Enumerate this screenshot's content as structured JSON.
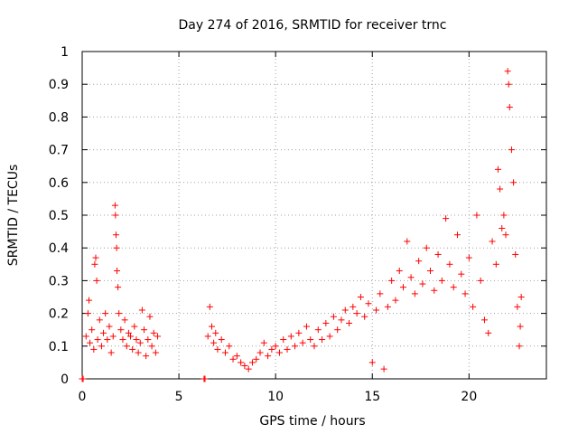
{
  "chart_data": {
    "type": "scatter",
    "title": "Day 274 of 2016, SRMTID for receiver trnc",
    "xlabel": "GPS time / hours",
    "ylabel": "SRMTID / TECUs",
    "xlim": [
      0,
      24
    ],
    "ylim": [
      0,
      1
    ],
    "xticks": [
      0,
      5,
      10,
      15,
      20
    ],
    "xtick_labels": [
      "0",
      "5",
      "10",
      "15",
      "20"
    ],
    "yticks": [
      0,
      0.1,
      0.2,
      0.3,
      0.4,
      0.5,
      0.6,
      0.7,
      0.8,
      0.9,
      1
    ],
    "ytick_labels": [
      "0",
      "0.1",
      "0.2",
      "0.3",
      "0.4",
      "0.5",
      "0.6",
      "0.7",
      "0.8",
      "0.9",
      "1"
    ],
    "grid": true,
    "marker": "plus",
    "color": "#ff0000",
    "series": [
      {
        "name": "SRMTID",
        "points": [
          [
            0.0,
            0.0
          ],
          [
            0.05,
            0.0
          ],
          [
            0.2,
            0.13
          ],
          [
            0.3,
            0.2
          ],
          [
            0.35,
            0.24
          ],
          [
            0.4,
            0.11
          ],
          [
            0.5,
            0.15
          ],
          [
            0.6,
            0.09
          ],
          [
            0.65,
            0.35
          ],
          [
            0.7,
            0.37
          ],
          [
            0.75,
            0.3
          ],
          [
            0.8,
            0.12
          ],
          [
            0.9,
            0.18
          ],
          [
            1.0,
            0.1
          ],
          [
            1.1,
            0.14
          ],
          [
            1.2,
            0.2
          ],
          [
            1.3,
            0.12
          ],
          [
            1.4,
            0.16
          ],
          [
            1.5,
            0.08
          ],
          [
            1.6,
            0.13
          ],
          [
            1.7,
            0.53
          ],
          [
            1.72,
            0.5
          ],
          [
            1.75,
            0.44
          ],
          [
            1.78,
            0.4
          ],
          [
            1.8,
            0.33
          ],
          [
            1.85,
            0.28
          ],
          [
            1.9,
            0.2
          ],
          [
            2.0,
            0.15
          ],
          [
            2.1,
            0.12
          ],
          [
            2.2,
            0.18
          ],
          [
            2.3,
            0.1
          ],
          [
            2.4,
            0.14
          ],
          [
            2.5,
            0.13
          ],
          [
            2.6,
            0.09
          ],
          [
            2.7,
            0.16
          ],
          [
            2.8,
            0.12
          ],
          [
            2.9,
            0.08
          ],
          [
            3.0,
            0.11
          ],
          [
            3.1,
            0.21
          ],
          [
            3.2,
            0.15
          ],
          [
            3.3,
            0.07
          ],
          [
            3.4,
            0.12
          ],
          [
            3.5,
            0.19
          ],
          [
            3.6,
            0.1
          ],
          [
            3.7,
            0.14
          ],
          [
            3.8,
            0.08
          ],
          [
            3.9,
            0.13
          ],
          [
            6.3,
            0.0
          ],
          [
            6.35,
            0.0
          ],
          [
            6.5,
            0.13
          ],
          [
            6.6,
            0.22
          ],
          [
            6.7,
            0.16
          ],
          [
            6.8,
            0.11
          ],
          [
            6.9,
            0.14
          ],
          [
            7.0,
            0.09
          ],
          [
            7.2,
            0.12
          ],
          [
            7.4,
            0.08
          ],
          [
            7.6,
            0.1
          ],
          [
            7.8,
            0.06
          ],
          [
            8.0,
            0.07
          ],
          [
            8.2,
            0.05
          ],
          [
            8.4,
            0.04
          ],
          [
            8.6,
            0.03
          ],
          [
            8.8,
            0.05
          ],
          [
            9.0,
            0.06
          ],
          [
            9.2,
            0.08
          ],
          [
            9.4,
            0.11
          ],
          [
            9.6,
            0.07
          ],
          [
            9.8,
            0.09
          ],
          [
            10.0,
            0.1
          ],
          [
            10.2,
            0.08
          ],
          [
            10.4,
            0.12
          ],
          [
            10.6,
            0.09
          ],
          [
            10.8,
            0.13
          ],
          [
            11.0,
            0.1
          ],
          [
            11.2,
            0.14
          ],
          [
            11.4,
            0.11
          ],
          [
            11.6,
            0.16
          ],
          [
            11.8,
            0.12
          ],
          [
            12.0,
            0.1
          ],
          [
            12.2,
            0.15
          ],
          [
            12.4,
            0.12
          ],
          [
            12.6,
            0.17
          ],
          [
            12.8,
            0.13
          ],
          [
            13.0,
            0.19
          ],
          [
            13.2,
            0.15
          ],
          [
            13.4,
            0.18
          ],
          [
            13.6,
            0.21
          ],
          [
            13.8,
            0.17
          ],
          [
            14.0,
            0.22
          ],
          [
            14.2,
            0.2
          ],
          [
            14.4,
            0.25
          ],
          [
            14.6,
            0.19
          ],
          [
            14.8,
            0.23
          ],
          [
            15.0,
            0.05
          ],
          [
            15.2,
            0.21
          ],
          [
            15.4,
            0.26
          ],
          [
            15.6,
            0.03
          ],
          [
            15.8,
            0.22
          ],
          [
            16.0,
            0.3
          ],
          [
            16.2,
            0.24
          ],
          [
            16.4,
            0.33
          ],
          [
            16.6,
            0.28
          ],
          [
            16.8,
            0.42
          ],
          [
            17.0,
            0.31
          ],
          [
            17.2,
            0.26
          ],
          [
            17.4,
            0.36
          ],
          [
            17.6,
            0.29
          ],
          [
            17.8,
            0.4
          ],
          [
            18.0,
            0.33
          ],
          [
            18.2,
            0.27
          ],
          [
            18.4,
            0.38
          ],
          [
            18.6,
            0.3
          ],
          [
            18.8,
            0.49
          ],
          [
            19.0,
            0.35
          ],
          [
            19.2,
            0.28
          ],
          [
            19.4,
            0.44
          ],
          [
            19.6,
            0.32
          ],
          [
            19.8,
            0.26
          ],
          [
            20.0,
            0.37
          ],
          [
            20.2,
            0.22
          ],
          [
            20.4,
            0.5
          ],
          [
            20.6,
            0.3
          ],
          [
            20.8,
            0.18
          ],
          [
            21.0,
            0.14
          ],
          [
            21.2,
            0.42
          ],
          [
            21.4,
            0.35
          ],
          [
            21.5,
            0.64
          ],
          [
            21.6,
            0.58
          ],
          [
            21.7,
            0.46
          ],
          [
            21.8,
            0.5
          ],
          [
            21.9,
            0.44
          ],
          [
            22.0,
            0.94
          ],
          [
            22.05,
            0.9
          ],
          [
            22.1,
            0.83
          ],
          [
            22.2,
            0.7
          ],
          [
            22.3,
            0.6
          ],
          [
            22.4,
            0.38
          ],
          [
            22.5,
            0.22
          ],
          [
            22.6,
            0.1
          ],
          [
            22.65,
            0.16
          ],
          [
            22.7,
            0.25
          ]
        ]
      }
    ]
  }
}
